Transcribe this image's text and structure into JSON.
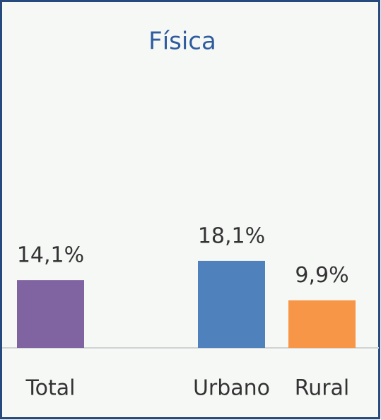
{
  "chart_data": {
    "type": "bar",
    "title": "Física",
    "categories": [
      "Total",
      "Urbano",
      "Rural"
    ],
    "values": [
      14.1,
      18.1,
      9.9
    ],
    "value_labels": [
      "14,1%",
      "18,1%",
      "9,9%"
    ],
    "colors": [
      "#8064a2",
      "#4f81bd",
      "#f79646"
    ]
  }
}
